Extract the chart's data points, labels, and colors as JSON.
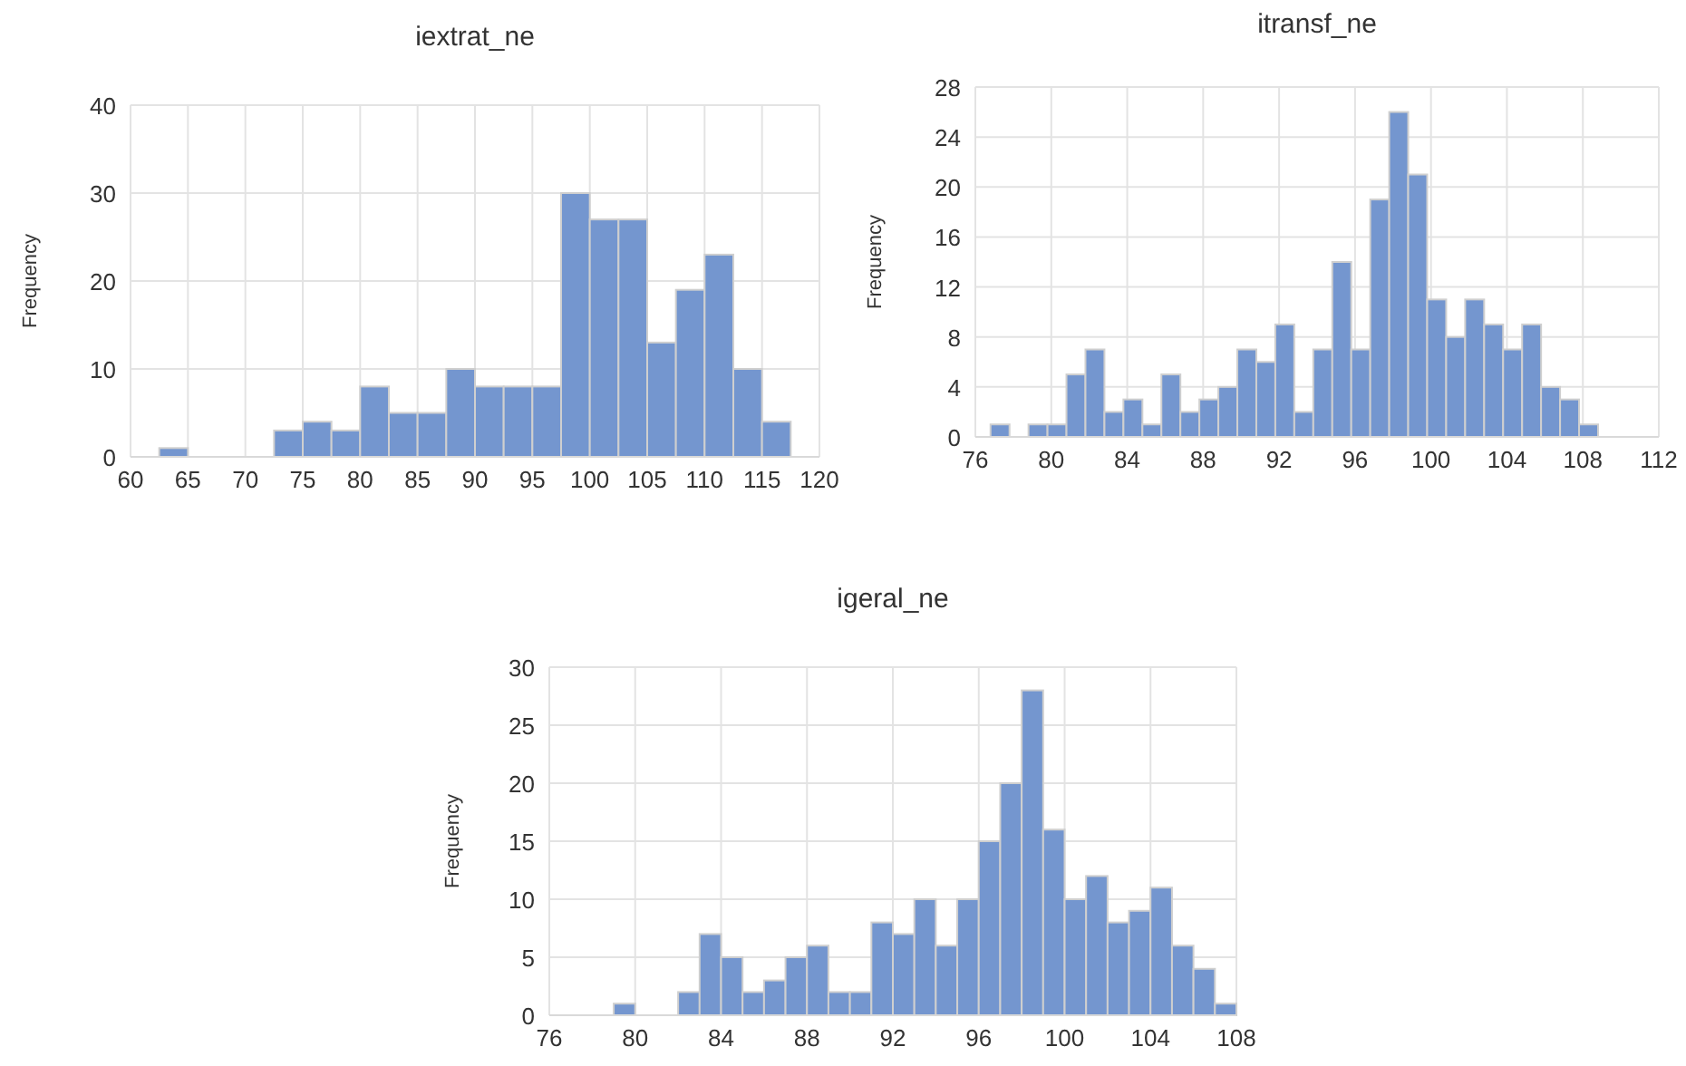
{
  "chart_data": [
    {
      "type": "histogram",
      "title": "iextrat_ne",
      "ylabel": "Frequency",
      "color": "#7496cf",
      "bins": [
        62.5,
        65,
        67.5,
        70,
        72.5,
        75,
        77.5,
        80,
        82.5,
        85,
        87.5,
        90,
        92.5,
        95,
        97.5,
        100,
        102.5,
        105,
        107.5,
        110,
        112.5,
        115,
        117.5
      ],
      "values": [
        1,
        0,
        0,
        0,
        3,
        4,
        3,
        8,
        5,
        5,
        10,
        8,
        8,
        8,
        30,
        27,
        27,
        13,
        19,
        23,
        10,
        4
      ],
      "xlim": [
        60,
        120
      ],
      "xticks": [
        60,
        65,
        70,
        75,
        80,
        85,
        90,
        95,
        100,
        105,
        110,
        115,
        120
      ],
      "ylim": [
        0,
        40
      ],
      "yticks": [
        0,
        10,
        20,
        30,
        40
      ],
      "grid": true
    },
    {
      "type": "histogram",
      "title": "itransf_ne",
      "ylabel": "Frequency",
      "color": "#7496cf",
      "bins": [
        76.8,
        77.8,
        78.8,
        79.8,
        80.8,
        81.8,
        82.8,
        83.8,
        84.8,
        85.8,
        86.8,
        87.8,
        88.8,
        89.8,
        90.8,
        91.8,
        92.8,
        93.8,
        94.8,
        95.8,
        96.8,
        97.8,
        98.8,
        99.8,
        100.8,
        101.8,
        102.8,
        103.8,
        104.8,
        105.8,
        106.8,
        107.8,
        108.8
      ],
      "values": [
        1,
        0,
        1,
        1,
        5,
        7,
        2,
        3,
        1,
        5,
        2,
        3,
        4,
        7,
        6,
        9,
        2,
        7,
        14,
        7,
        19,
        26,
        21,
        11,
        8,
        11,
        9,
        7,
        9,
        4,
        3,
        1
      ],
      "xlim": [
        76,
        112
      ],
      "xticks": [
        76,
        80,
        84,
        88,
        92,
        96,
        100,
        104,
        108,
        112
      ],
      "ylim": [
        0,
        28
      ],
      "yticks": [
        0,
        4,
        8,
        12,
        16,
        20,
        24,
        28
      ],
      "grid": true
    },
    {
      "type": "histogram",
      "title": "igeral_ne",
      "ylabel": "Frequency",
      "color": "#7496cf",
      "bins": [
        79,
        80,
        81,
        82,
        83,
        84,
        85,
        86,
        87,
        88,
        89,
        90,
        91,
        92,
        93,
        94,
        95,
        96,
        97,
        98,
        99,
        100,
        101,
        102,
        103,
        104,
        105,
        106,
        107,
        108
      ],
      "values": [
        1,
        0,
        0,
        2,
        7,
        5,
        2,
        3,
        5,
        6,
        2,
        2,
        8,
        7,
        10,
        6,
        10,
        15,
        20,
        28,
        16,
        10,
        12,
        8,
        9,
        11,
        6,
        4,
        1
      ],
      "xlim": [
        76,
        108
      ],
      "xticks": [
        76,
        80,
        84,
        88,
        92,
        96,
        100,
        104,
        108
      ],
      "ylim": [
        0,
        30
      ],
      "yticks": [
        0,
        5,
        10,
        15,
        20,
        25,
        30
      ],
      "grid": true
    }
  ]
}
